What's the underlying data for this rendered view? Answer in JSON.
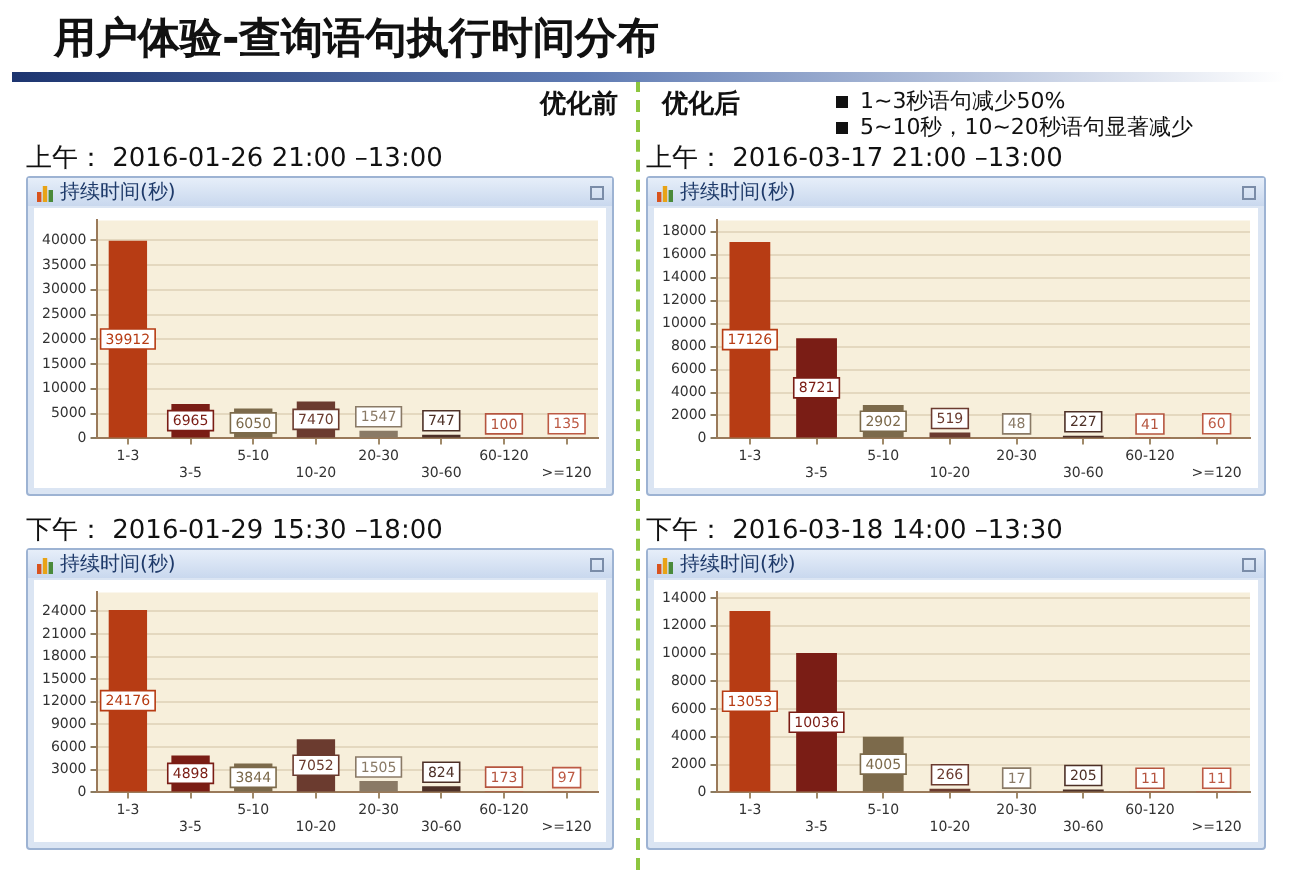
{
  "chart_data": [
    {
      "type": "other",
      "title": "用户体验-查询语句执行时间分布",
      "annotations": [
        "优化前",
        "优化后",
        "1~3秒语句减少50%",
        "5~10秒，10~20秒语句显著减少"
      ]
    },
    {
      "type": "bar",
      "title": "上午： 2016-01-26 21:00 –13:00",
      "subtitle": "持续时间(秒)",
      "categories": [
        "1-3",
        "3-5",
        "5-10",
        "10-20",
        "20-30",
        "30-60",
        "60-120",
        ">=120"
      ],
      "values": [
        39912,
        6965,
        6050,
        7470,
        1547,
        747,
        100,
        135
      ],
      "colors": [
        "#b73c14",
        "#7a1d15",
        "#7c6a4b",
        "#6b3b2f",
        "#8a7a66",
        "#4d3027",
        "#b5553f",
        "#bd5a44"
      ],
      "ylim": [
        0,
        44000
      ],
      "yticks": [
        0,
        5000,
        10000,
        15000,
        20000,
        25000,
        30000,
        35000,
        40000
      ],
      "grid": "y",
      "data_labels": true
    },
    {
      "type": "bar",
      "title": "上午： 2016-03-17 21:00 –13:00",
      "subtitle": "持续时间(秒)",
      "categories": [
        "1-3",
        "3-5",
        "5-10",
        "10-20",
        "20-30",
        "30-60",
        "60-120",
        ">=120"
      ],
      "values": [
        17126,
        8721,
        2902,
        519,
        48,
        227,
        41,
        60
      ],
      "colors": [
        "#b73c14",
        "#7a1d15",
        "#7c6a4b",
        "#6b3b2f",
        "#8a7a66",
        "#4d3027",
        "#b5553f",
        "#bd5a44"
      ],
      "ylim": [
        0,
        19000
      ],
      "yticks": [
        0,
        2000,
        4000,
        6000,
        8000,
        10000,
        12000,
        14000,
        16000,
        18000
      ],
      "grid": "y",
      "data_labels": true
    },
    {
      "type": "bar",
      "title": "下午： 2016-01-29 15:30 –18:00",
      "subtitle": "持续时间(秒)",
      "categories": [
        "1-3",
        "3-5",
        "5-10",
        "10-20",
        "20-30",
        "30-60",
        "60-120",
        ">=120"
      ],
      "values": [
        24176,
        4898,
        3844,
        7052,
        1505,
        824,
        173,
        97
      ],
      "colors": [
        "#b73c14",
        "#7a1d15",
        "#7c6a4b",
        "#6b3b2f",
        "#8a7a66",
        "#4d3027",
        "#b5553f",
        "#bd5a44"
      ],
      "ylim": [
        0,
        26500
      ],
      "yticks": [
        0,
        3000,
        6000,
        9000,
        12000,
        15000,
        18000,
        21000,
        24000
      ],
      "grid": "y",
      "data_labels": true
    },
    {
      "type": "bar",
      "title": "下午： 2016-03-18 14:00 –13:30",
      "subtitle": "持续时间(秒)",
      "categories": [
        "1-3",
        "3-5",
        "5-10",
        "10-20",
        "20-30",
        "30-60",
        "60-120",
        ">=120"
      ],
      "values": [
        13053,
        10036,
        4005,
        266,
        17,
        205,
        11,
        11
      ],
      "colors": [
        "#b73c14",
        "#7a1d15",
        "#7c6a4b",
        "#6b3b2f",
        "#8a7a66",
        "#4d3027",
        "#b5553f",
        "#bd5a44"
      ],
      "ylim": [
        0,
        14400
      ],
      "yticks": [
        0,
        2000,
        4000,
        6000,
        8000,
        10000,
        12000,
        14000
      ],
      "grid": "y",
      "data_labels": true
    }
  ]
}
